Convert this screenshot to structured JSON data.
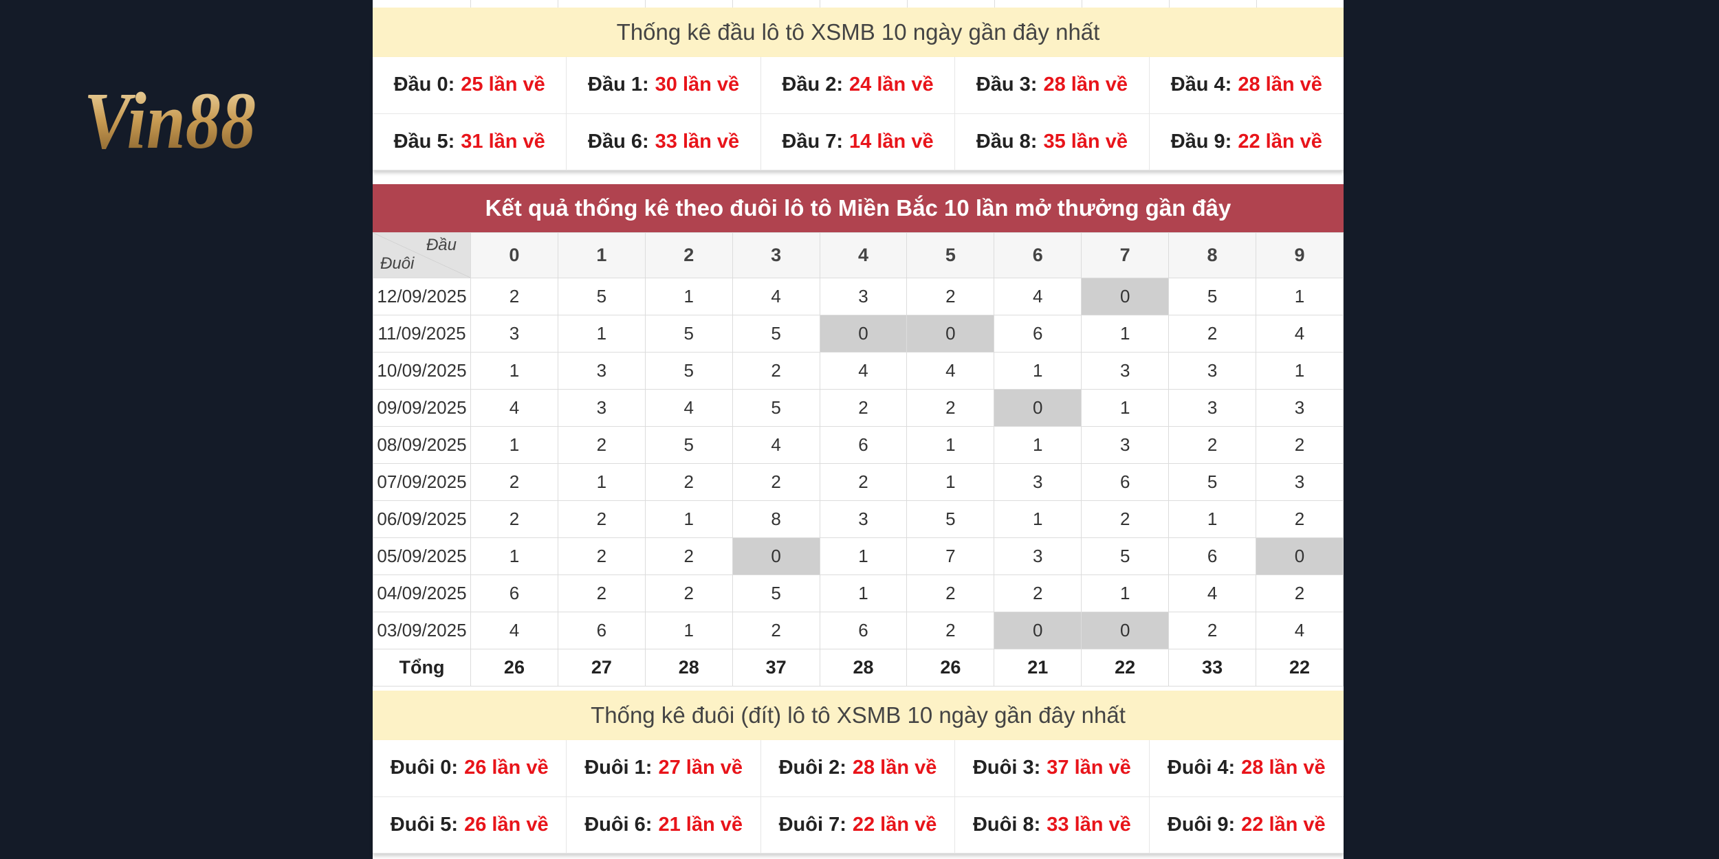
{
  "brand": {
    "logo_text": "Vin88"
  },
  "head_stats": {
    "title": "Thống kê đầu lô tô XSMB 10 ngày gần đây nhất",
    "items": [
      {
        "label": "Đầu 0:",
        "count": "25 lần về"
      },
      {
        "label": "Đầu 1:",
        "count": "30 lần về"
      },
      {
        "label": "Đầu 2:",
        "count": "24 lần về"
      },
      {
        "label": "Đầu 3:",
        "count": "28 lần về"
      },
      {
        "label": "Đầu 4:",
        "count": "28 lần về"
      },
      {
        "label": "Đầu 5:",
        "count": "31 lần về"
      },
      {
        "label": "Đầu 6:",
        "count": "33 lần về"
      },
      {
        "label": "Đầu 7:",
        "count": "14 lần về"
      },
      {
        "label": "Đầu 8:",
        "count": "35 lần về"
      },
      {
        "label": "Đầu 9:",
        "count": "22 lần về"
      }
    ]
  },
  "tail_table": {
    "title": "Kết quả thống kê theo đuôi lô tô Miền Bắc 10 lần mở thưởng gần đây",
    "corner_top": "Đầu",
    "corner_bottom": "Đuôi",
    "columns": [
      "0",
      "1",
      "2",
      "3",
      "4",
      "5",
      "6",
      "7",
      "8",
      "9"
    ],
    "rows": [
      {
        "date": "12/09/2025",
        "values": [
          "2",
          "5",
          "1",
          "4",
          "3",
          "2",
          "4",
          "0",
          "5",
          "1"
        ]
      },
      {
        "date": "11/09/2025",
        "values": [
          "3",
          "1",
          "5",
          "5",
          "0",
          "0",
          "6",
          "1",
          "2",
          "4"
        ]
      },
      {
        "date": "10/09/2025",
        "values": [
          "1",
          "3",
          "5",
          "2",
          "4",
          "4",
          "1",
          "3",
          "3",
          "1"
        ]
      },
      {
        "date": "09/09/2025",
        "values": [
          "4",
          "3",
          "4",
          "5",
          "2",
          "2",
          "0",
          "1",
          "3",
          "3"
        ]
      },
      {
        "date": "08/09/2025",
        "values": [
          "1",
          "2",
          "5",
          "4",
          "6",
          "1",
          "1",
          "3",
          "2",
          "2"
        ]
      },
      {
        "date": "07/09/2025",
        "values": [
          "2",
          "1",
          "2",
          "2",
          "2",
          "1",
          "3",
          "6",
          "5",
          "3"
        ]
      },
      {
        "date": "06/09/2025",
        "values": [
          "2",
          "2",
          "1",
          "8",
          "3",
          "5",
          "1",
          "2",
          "1",
          "2"
        ]
      },
      {
        "date": "05/09/2025",
        "values": [
          "1",
          "2",
          "2",
          "0",
          "1",
          "7",
          "3",
          "5",
          "6",
          "0"
        ]
      },
      {
        "date": "04/09/2025",
        "values": [
          "6",
          "2",
          "2",
          "5",
          "1",
          "2",
          "2",
          "1",
          "4",
          "2"
        ]
      },
      {
        "date": "03/09/2025",
        "values": [
          "4",
          "6",
          "1",
          "2",
          "6",
          "2",
          "0",
          "0",
          "2",
          "4"
        ]
      }
    ],
    "total_label": "Tổng",
    "totals": [
      "26",
      "27",
      "28",
      "37",
      "28",
      "26",
      "21",
      "22",
      "33",
      "22"
    ],
    "highlight_color": "#cfcfcf"
  },
  "tail_stats": {
    "title": "Thống kê đuôi (đít) lô tô XSMB 10 ngày gần đây nhất",
    "items": [
      {
        "label": "Đuôi 0:",
        "count": "26 lần về"
      },
      {
        "label": "Đuôi 1:",
        "count": "27 lần về"
      },
      {
        "label": "Đuôi 2:",
        "count": "28 lần về"
      },
      {
        "label": "Đuôi 3:",
        "count": "37 lần về"
      },
      {
        "label": "Đuôi 4:",
        "count": "28 lần về"
      },
      {
        "label": "Đuôi 5:",
        "count": "26 lần về"
      },
      {
        "label": "Đuôi 6:",
        "count": "21 lần về"
      },
      {
        "label": "Đuôi 7:",
        "count": "22 lần về"
      },
      {
        "label": "Đuôi 8:",
        "count": "33 lần về"
      },
      {
        "label": "Đuôi 9:",
        "count": "22 lần về"
      }
    ]
  },
  "colors": {
    "accent_red": "#e8141a",
    "title_bar": "#b0434f",
    "yellow_bar": "#fdf2c6",
    "page_bg": "#141b28"
  }
}
